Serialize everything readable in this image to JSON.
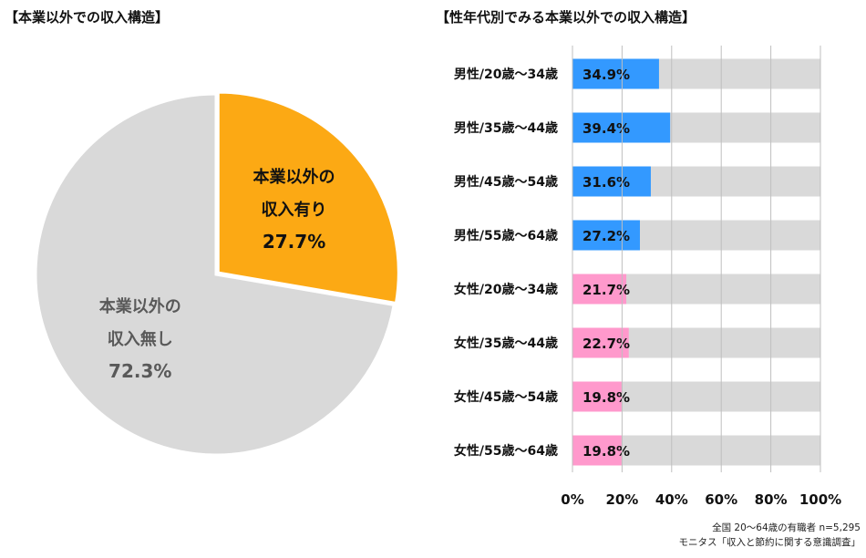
{
  "pie_title": "【本業以外での収入構造】",
  "bar_title": "【性年代別でみる本業以外での収入構造】",
  "footnote": {
    "line1": "全国 20～64歳の有職者 n=5,295",
    "line2": "モニタス「収入と節約に関する意識調査」"
  },
  "chart_data": [
    {
      "type": "pie",
      "title": "【本業以外での収入構造】",
      "slices": [
        {
          "label_lines": [
            "本業以外の",
            "収入有り"
          ],
          "value": 27.7,
          "value_label": "27.7%",
          "color": "#FCA914"
        },
        {
          "label_lines": [
            "本業以外の",
            "収入無し"
          ],
          "value": 72.3,
          "value_label": "72.3%",
          "color": "#D9D9D9"
        }
      ]
    },
    {
      "type": "bar",
      "orientation": "horizontal",
      "title": "【性年代別でみる本業以外での収入構造】",
      "xlim": [
        0,
        100
      ],
      "x_ticks": [
        "0%",
        "20%",
        "40%",
        "60%",
        "80%",
        "100%"
      ],
      "background_color": "#D9D9D9",
      "categories": [
        {
          "label": "男性/20歳～34歳",
          "value": 34.9,
          "value_label": "34.9%",
          "color": "#3399FF"
        },
        {
          "label": "男性/35歳～44歳",
          "value": 39.4,
          "value_label": "39.4%",
          "color": "#3399FF"
        },
        {
          "label": "男性/45歳～54歳",
          "value": 31.6,
          "value_label": "31.6%",
          "color": "#3399FF"
        },
        {
          "label": "男性/55歳～64歳",
          "value": 27.2,
          "value_label": "27.2%",
          "color": "#3399FF"
        },
        {
          "label": "女性/20歳～34歳",
          "value": 21.7,
          "value_label": "21.7%",
          "color": "#FF99CC"
        },
        {
          "label": "女性/35歳～44歳",
          "value": 22.7,
          "value_label": "22.7%",
          "color": "#FF99CC"
        },
        {
          "label": "女性/45歳～54歳",
          "value": 19.8,
          "value_label": "19.8%",
          "color": "#FF99CC"
        },
        {
          "label": "女性/55歳～64歳",
          "value": 19.8,
          "value_label": "19.8%",
          "color": "#FF99CC"
        }
      ]
    }
  ]
}
